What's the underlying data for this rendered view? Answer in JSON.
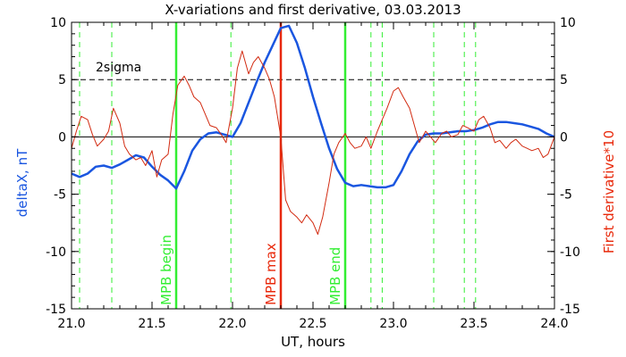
{
  "chart_data": {
    "type": "line",
    "title": "X-variations and first derivative, 03.03.2013",
    "xlabel": "UT, hours",
    "ylabel_left": "deltaX, nT",
    "ylabel_right": "First derivative*10",
    "xlim": [
      21.0,
      24.0
    ],
    "ylim": [
      -15,
      10
    ],
    "xticks": [
      "21.0",
      "21.5",
      "22.0",
      "22.5",
      "23.0",
      "23.5",
      "24.0"
    ],
    "yticks": [
      "10",
      "5",
      "0",
      "-5",
      "-10",
      "-15"
    ],
    "threshold": {
      "label": "2sigma",
      "value": 5
    },
    "zero_line": 0,
    "series": [
      {
        "name": "deltaX, nT",
        "color": "#1a56e0",
        "x": [
          21.0,
          21.05,
          21.1,
          21.15,
          21.2,
          21.25,
          21.3,
          21.35,
          21.4,
          21.45,
          21.5,
          21.55,
          21.6,
          21.65,
          21.7,
          21.75,
          21.8,
          21.85,
          21.9,
          21.95,
          22.0,
          22.05,
          22.1,
          22.15,
          22.2,
          22.25,
          22.3,
          22.35,
          22.4,
          22.45,
          22.5,
          22.55,
          22.6,
          22.65,
          22.7,
          22.75,
          22.8,
          22.85,
          22.9,
          22.95,
          23.0,
          23.05,
          23.1,
          23.15,
          23.2,
          23.25,
          23.3,
          23.35,
          23.4,
          23.45,
          23.5,
          23.55,
          23.6,
          23.65,
          23.7,
          23.75,
          23.8,
          23.85,
          23.9,
          23.95,
          24.0
        ],
        "values": [
          -3.2,
          -3.5,
          -3.2,
          -2.6,
          -2.5,
          -2.7,
          -2.4,
          -2.0,
          -1.6,
          -1.8,
          -2.6,
          -3.3,
          -3.8,
          -4.5,
          -3.0,
          -1.2,
          -0.2,
          0.3,
          0.4,
          0.2,
          0.0,
          1.2,
          3.0,
          4.8,
          6.5,
          8.0,
          9.5,
          9.7,
          8.2,
          6.0,
          3.5,
          1.2,
          -1.0,
          -2.8,
          -4.0,
          -4.3,
          -4.2,
          -4.3,
          -4.4,
          -4.4,
          -4.2,
          -3.0,
          -1.5,
          -0.4,
          0.2,
          0.3,
          0.3,
          0.4,
          0.5,
          0.5,
          0.6,
          0.8,
          1.1,
          1.3,
          1.3,
          1.2,
          1.1,
          0.9,
          0.7,
          0.3,
          0.0
        ]
      },
      {
        "name": "First derivative*10",
        "color": "#d22a10",
        "x": [
          21.0,
          21.03,
          21.06,
          21.1,
          21.13,
          21.16,
          21.2,
          21.23,
          21.26,
          21.3,
          21.33,
          21.36,
          21.4,
          21.43,
          21.46,
          21.5,
          21.53,
          21.56,
          21.6,
          21.63,
          21.66,
          21.7,
          21.73,
          21.76,
          21.8,
          21.83,
          21.86,
          21.9,
          21.93,
          21.96,
          22.0,
          22.03,
          22.06,
          22.1,
          22.13,
          22.16,
          22.2,
          22.23,
          22.26,
          22.3,
          22.33,
          22.36,
          22.4,
          22.43,
          22.46,
          22.5,
          22.53,
          22.56,
          22.6,
          22.63,
          22.66,
          22.7,
          22.73,
          22.76,
          22.8,
          22.83,
          22.86,
          22.9,
          22.93,
          22.96,
          23.0,
          23.03,
          23.06,
          23.1,
          23.13,
          23.16,
          23.2,
          23.23,
          23.26,
          23.3,
          23.33,
          23.36,
          23.4,
          23.43,
          23.46,
          23.5,
          23.53,
          23.56,
          23.6,
          23.63,
          23.66,
          23.7,
          23.73,
          23.76,
          23.8,
          23.83,
          23.86,
          23.9,
          23.93,
          23.96,
          24.0
        ],
        "values": [
          -1.0,
          0.5,
          1.8,
          1.5,
          0.2,
          -0.8,
          -0.2,
          0.5,
          2.5,
          1.2,
          -0.8,
          -1.5,
          -2.0,
          -1.8,
          -2.5,
          -1.2,
          -3.5,
          -2.0,
          -1.5,
          2.0,
          4.5,
          5.3,
          4.5,
          3.5,
          3.0,
          2.0,
          1.0,
          0.8,
          0.2,
          -0.5,
          2.5,
          6.0,
          7.5,
          5.5,
          6.5,
          7.0,
          6.0,
          5.0,
          3.5,
          0.0,
          -5.5,
          -6.5,
          -7.0,
          -7.5,
          -6.8,
          -7.5,
          -8.5,
          -7.0,
          -4.0,
          -1.5,
          -0.5,
          0.3,
          -0.5,
          -1.0,
          -0.8,
          0.0,
          -1.0,
          0.5,
          1.5,
          2.5,
          4.0,
          4.3,
          3.5,
          2.5,
          1.0,
          -0.5,
          0.5,
          0.0,
          -0.5,
          0.3,
          0.5,
          0.0,
          0.2,
          1.0,
          0.8,
          0.5,
          1.5,
          1.8,
          0.8,
          -0.5,
          -0.3,
          -1.0,
          -0.5,
          -0.2,
          -0.8,
          -1.0,
          -1.2,
          -1.0,
          -1.8,
          -1.5,
          0.0
        ]
      }
    ],
    "markers": [
      {
        "label": "MPB begin",
        "x": 21.65,
        "color": "#33ee33"
      },
      {
        "label": "MPB max",
        "x": 22.3,
        "color": "#e8280a"
      },
      {
        "label": "MPB end",
        "x": 22.7,
        "color": "#33ee33"
      }
    ],
    "dashed_markers": {
      "color": "#33ee33",
      "x": [
        21.05,
        21.25,
        21.65,
        21.99,
        22.7,
        22.86,
        22.93,
        23.25,
        23.44,
        23.51
      ]
    },
    "colors": {
      "left_axis_label": "#1a56e0",
      "right_axis_label": "#e8280a",
      "frame": "#000000"
    }
  }
}
